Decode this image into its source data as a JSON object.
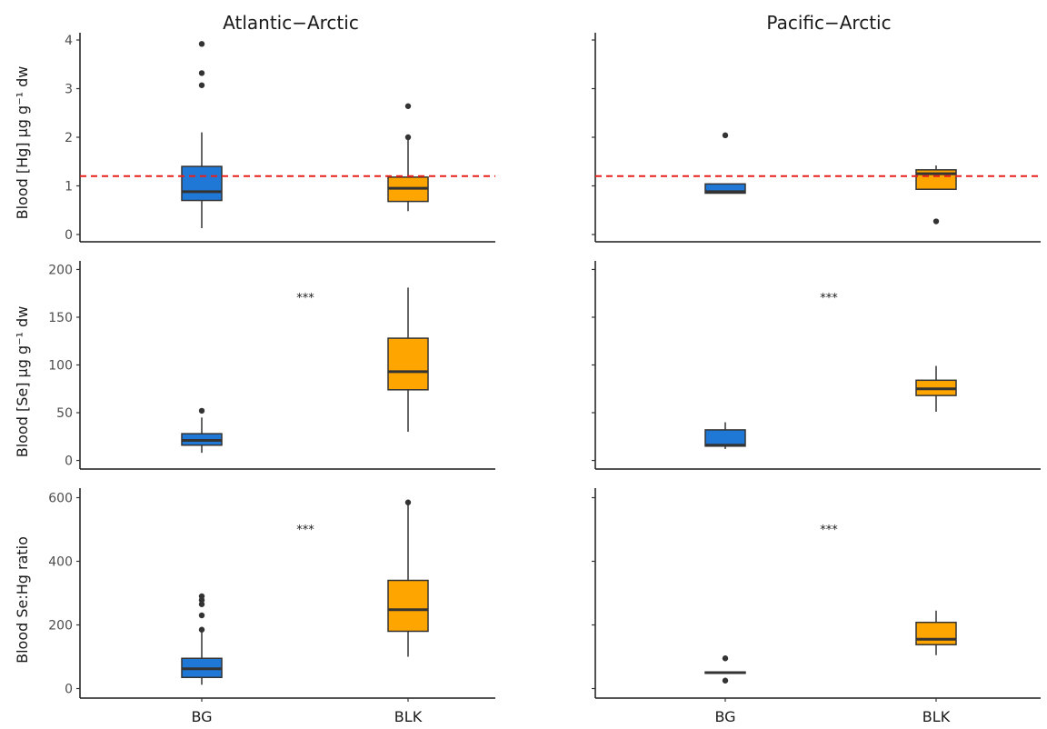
{
  "facets": [
    "Atlantic−Arctic",
    "Pacific−Arctic"
  ],
  "rows": [
    {
      "ylabel": "Blood [Hg] µg g⁻¹ dw"
    },
    {
      "ylabel": "Blood [Se] µg g⁻¹ dw"
    },
    {
      "ylabel": "Blood Se:Hg ratio"
    }
  ],
  "x_categories": [
    "BG",
    "BLK"
  ],
  "colors": {
    "BG": "#1f77d6",
    "BLK": "#ffa500",
    "threshold_line": "#e8201c",
    "box_outline": "#333333"
  },
  "chart_data": [
    {
      "type": "box",
      "row": 0,
      "column": 0,
      "ylim": [
        -0.15,
        4.15
      ],
      "yticks": [
        0,
        1,
        2,
        3,
        4
      ],
      "threshold": 1.2,
      "significance": "",
      "boxes": [
        {
          "category": "BG",
          "min": 0.13,
          "q1": 0.7,
          "median": 0.88,
          "q3": 1.4,
          "max": 2.1,
          "outliers": [
            3.07,
            3.32,
            3.92
          ]
        },
        {
          "category": "BLK",
          "min": 0.48,
          "q1": 0.68,
          "median": 0.95,
          "q3": 1.18,
          "max": 1.95,
          "outliers": [
            2.0,
            2.64
          ]
        }
      ]
    },
    {
      "type": "box",
      "row": 0,
      "column": 1,
      "ylim": [
        -0.15,
        4.15
      ],
      "yticks": [
        0,
        1,
        2,
        3,
        4
      ],
      "threshold": 1.2,
      "significance": "",
      "boxes": [
        {
          "category": "BG",
          "min": 0.85,
          "q1": 0.85,
          "median": 0.88,
          "q3": 1.04,
          "max": 1.04,
          "outliers": [
            2.04
          ]
        },
        {
          "category": "BLK",
          "min": 0.93,
          "q1": 0.93,
          "median": 1.25,
          "q3": 1.33,
          "max": 1.42,
          "outliers": [
            0.27
          ]
        }
      ]
    },
    {
      "type": "box",
      "row": 1,
      "column": 0,
      "ylim": [
        -9,
        209
      ],
      "yticks": [
        0,
        50,
        100,
        150,
        200
      ],
      "threshold": null,
      "significance": "***",
      "significance_y": 172,
      "boxes": [
        {
          "category": "BG",
          "min": 8,
          "q1": 16,
          "median": 21,
          "q3": 28,
          "max": 45,
          "outliers": [
            52
          ]
        },
        {
          "category": "BLK",
          "min": 30,
          "q1": 74,
          "median": 93,
          "q3": 128,
          "max": 181,
          "outliers": []
        }
      ]
    },
    {
      "type": "box",
      "row": 1,
      "column": 1,
      "ylim": [
        -9,
        209
      ],
      "yticks": [
        0,
        50,
        100,
        150,
        200
      ],
      "threshold": null,
      "significance": "***",
      "significance_y": 172,
      "boxes": [
        {
          "category": "BG",
          "min": 12,
          "q1": 15,
          "median": 16,
          "q3": 32,
          "max": 40,
          "outliers": []
        },
        {
          "category": "BLK",
          "min": 51,
          "q1": 68,
          "median": 75,
          "q3": 84,
          "max": 99,
          "outliers": []
        }
      ]
    },
    {
      "type": "box",
      "row": 2,
      "column": 0,
      "ylim": [
        -30,
        630
      ],
      "yticks": [
        0,
        200,
        400,
        600
      ],
      "threshold": null,
      "significance": "***",
      "significance_y": 505,
      "boxes": [
        {
          "category": "BG",
          "min": 12,
          "q1": 35,
          "median": 62,
          "q3": 95,
          "max": 180,
          "outliers": [
            185,
            230,
            265,
            278,
            290
          ]
        },
        {
          "category": "BLK",
          "min": 100,
          "q1": 180,
          "median": 248,
          "q3": 340,
          "max": 585,
          "outliers": [
            585
          ]
        }
      ]
    },
    {
      "type": "box",
      "row": 2,
      "column": 1,
      "ylim": [
        -30,
        630
      ],
      "yticks": [
        0,
        200,
        400,
        600
      ],
      "threshold": null,
      "significance": "***",
      "significance_y": 505,
      "boxes": [
        {
          "category": "BG",
          "min": 48,
          "q1": 48,
          "median": 50,
          "q3": 52,
          "max": 52,
          "outliers": [
            25,
            95
          ]
        },
        {
          "category": "BLK",
          "min": 105,
          "q1": 138,
          "median": 155,
          "q3": 208,
          "max": 245,
          "outliers": []
        }
      ]
    }
  ]
}
